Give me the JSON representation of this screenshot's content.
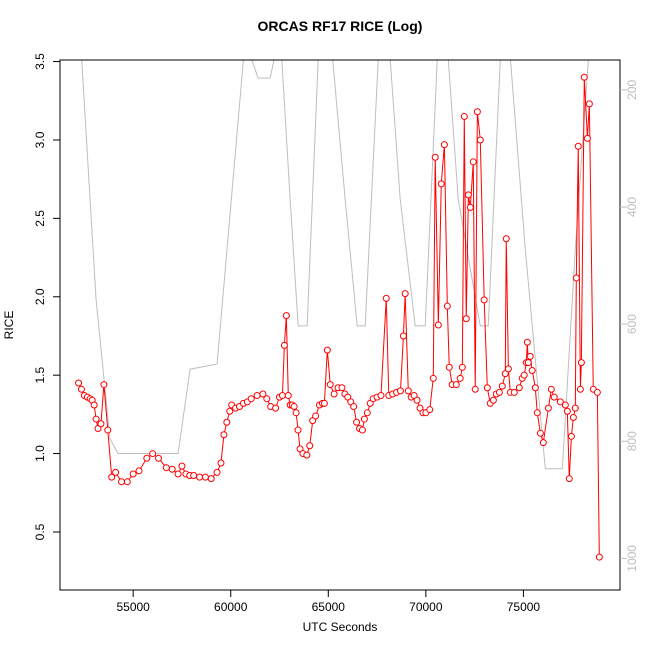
{
  "chart_data": {
    "type": "line",
    "title": "ORCAS RF17 RICE (Log)",
    "xlabel": "UTC Seconds",
    "ylabel": "RICE",
    "xlim": [
      51250,
      79950
    ],
    "ylim": [
      0.13,
      3.51
    ],
    "xticks": [
      55000,
      60000,
      65000,
      70000,
      75000
    ],
    "yticks": [
      0.5,
      {
        "value": 1.0,
        "label": "1.0"
      },
      1.5,
      {
        "value": 2.0,
        "label": "2.0"
      },
      2.5,
      {
        "value": 3.0,
        "label": "3.0"
      },
      3.5
    ],
    "y2lim": [
      1054,
      149
    ],
    "y2ticks": [
      200,
      400,
      600,
      800,
      1000
    ],
    "series": [
      {
        "color": "#bebebe",
        "axis": "y2",
        "x": [
          52276,
          53096,
          53814,
          54224,
          57301,
          57917,
          59301,
          60737,
          61404,
          62019,
          62532,
          63045,
          63455,
          63917,
          64481,
          65096,
          65865,
          66481,
          66891,
          67558,
          68070,
          68686,
          69455,
          69968,
          70583,
          71045,
          71660,
          72788,
          73198,
          73814,
          74224,
          75096,
          76122,
          76994,
          77660,
          78429
        ],
        "values": [
          100,
          557,
          796,
          821,
          821,
          677,
          668,
          115,
          180,
          180,
          100,
          387,
          603,
          603,
          149,
          100,
          387,
          603,
          603,
          149,
          100,
          387,
          603,
          603,
          149,
          100,
          387,
          603,
          603,
          149,
          100,
          472,
          847,
          847,
          472,
          100
        ]
      },
      {
        "color": "#ff0000",
        "marker": "circle",
        "x": [
          52200,
          52350,
          52500,
          52650,
          52800,
          52900,
          53000,
          53100,
          53200,
          53350,
          53500,
          53700,
          53900,
          54100,
          54400,
          54700,
          55000,
          55300,
          55700,
          56000,
          56300,
          56700,
          57000,
          57300,
          57500,
          57700,
          57900,
          58100,
          58400,
          58700,
          59000,
          59300,
          59500,
          59650,
          59800,
          59950,
          60050,
          60250,
          60450,
          60650,
          60850,
          61050,
          61350,
          61650,
          61850,
          62050,
          62300,
          62500,
          62650,
          62750,
          62850,
          62950,
          63050,
          63150,
          63250,
          63350,
          63450,
          63550,
          63700,
          63900,
          64050,
          64200,
          64350,
          64550,
          64700,
          64800,
          64950,
          65100,
          65300,
          65500,
          65700,
          65850,
          66000,
          66150,
          66300,
          66450,
          66600,
          66750,
          66850,
          67000,
          67150,
          67300,
          67500,
          67700,
          67970,
          68100,
          68300,
          68500,
          68700,
          68850,
          68940,
          69100,
          69250,
          69400,
          69550,
          69700,
          69850,
          70000,
          70200,
          70380,
          70480,
          70640,
          70790,
          70950,
          71100,
          71200,
          71350,
          71560,
          71760,
          71870,
          71970,
          72070,
          72180,
          72280,
          72430,
          72530,
          72640,
          72790,
          72990,
          73150,
          73300,
          73460,
          73610,
          73770,
          73920,
          74070,
          74120,
          74230,
          74330,
          74530,
          74790,
          74940,
          75040,
          75150,
          75200,
          75250,
          75350,
          75450,
          75610,
          75710,
          75870,
          76020,
          76280,
          76430,
          76580,
          76890,
          77150,
          77250,
          77350,
          77460,
          77560,
          77660,
          77710,
          77810,
          77920,
          77970,
          78120,
          78280,
          78380,
          78580,
          78790,
          78890
        ],
        "values": [
          1.45,
          1.41,
          1.37,
          1.36,
          1.35,
          1.34,
          1.31,
          1.22,
          1.16,
          1.19,
          1.44,
          1.15,
          0.85,
          0.88,
          0.82,
          0.82,
          0.87,
          0.89,
          0.97,
          1.0,
          0.97,
          0.91,
          0.9,
          0.87,
          0.92,
          0.87,
          0.86,
          0.86,
          0.85,
          0.85,
          0.84,
          0.88,
          0.94,
          1.12,
          1.2,
          1.27,
          1.31,
          1.29,
          1.3,
          1.32,
          1.33,
          1.35,
          1.37,
          1.38,
          1.35,
          1.3,
          1.29,
          1.36,
          1.37,
          1.69,
          1.88,
          1.37,
          1.31,
          1.31,
          1.3,
          1.26,
          1.15,
          1.03,
          1.0,
          0.99,
          1.05,
          1.21,
          1.24,
          1.31,
          1.32,
          1.32,
          1.66,
          1.44,
          1.38,
          1.42,
          1.42,
          1.38,
          1.36,
          1.33,
          1.3,
          1.2,
          1.16,
          1.15,
          1.22,
          1.26,
          1.32,
          1.35,
          1.36,
          1.37,
          1.99,
          1.37,
          1.38,
          1.39,
          1.4,
          1.75,
          2.02,
          1.4,
          1.36,
          1.37,
          1.34,
          1.29,
          1.26,
          1.26,
          1.28,
          1.48,
          2.89,
          1.82,
          2.72,
          2.97,
          1.94,
          1.55,
          1.44,
          1.44,
          1.48,
          1.55,
          3.15,
          1.86,
          2.65,
          2.57,
          2.86,
          1.41,
          3.18,
          3.0,
          1.98,
          1.42,
          1.32,
          1.34,
          1.38,
          1.39,
          1.43,
          1.51,
          2.37,
          1.54,
          1.39,
          1.39,
          1.42,
          1.48,
          1.5,
          1.58,
          1.71,
          1.58,
          1.62,
          1.53,
          1.42,
          1.26,
          1.13,
          1.07,
          1.29,
          1.41,
          1.36,
          1.33,
          1.31,
          1.27,
          0.84,
          1.11,
          1.23,
          1.29,
          2.12,
          2.96,
          1.41,
          1.58,
          3.4,
          3.01,
          3.23,
          1.41,
          1.39,
          0.34
        ]
      }
    ]
  }
}
